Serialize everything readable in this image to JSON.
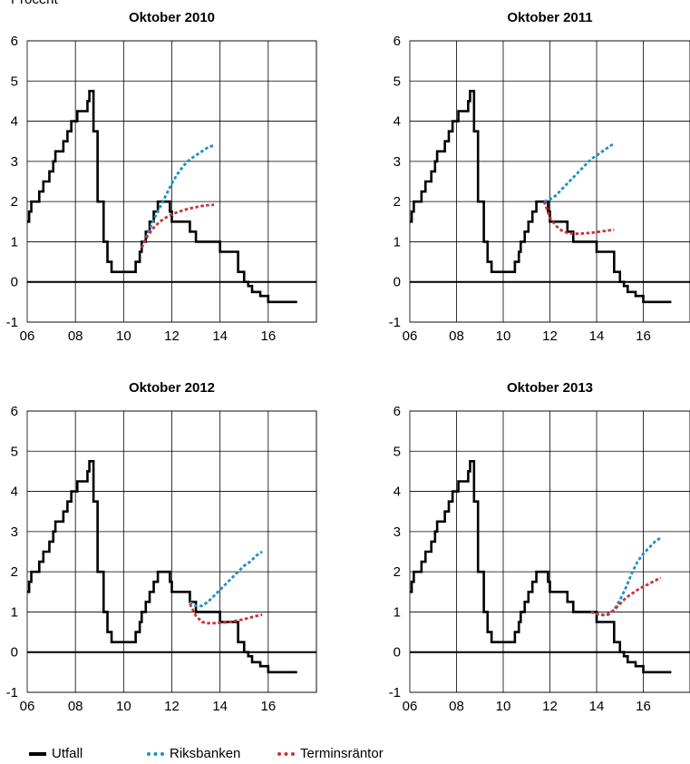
{
  "unit_label": "Procent",
  "colors": {
    "utfall": "#000000",
    "riksbanken": "#1f8fc2",
    "terminsrantor": "#c8323c"
  },
  "legend": [
    {
      "key": "utfall",
      "label": "Utfall",
      "style": "solid"
    },
    {
      "key": "riksbanken",
      "label": "Riksbanken",
      "style": "dotted"
    },
    {
      "key": "terminsrantor",
      "label": "Terminsräntor",
      "style": "dotted"
    }
  ],
  "chart_data": [
    {
      "type": "line",
      "title": "Oktober 2010",
      "xlim": [
        2006,
        2018
      ],
      "ylim": [
        -1,
        6
      ],
      "xticks": [
        {
          "v": 2006,
          "label": "06"
        },
        {
          "v": 2008,
          "label": "08"
        },
        {
          "v": 2010,
          "label": "10"
        },
        {
          "v": 2012,
          "label": "12"
        },
        {
          "v": 2014,
          "label": "14"
        },
        {
          "v": 2016,
          "label": "16"
        }
      ],
      "yticks": [
        -1,
        0,
        1,
        2,
        3,
        4,
        5,
        6
      ],
      "grid": true,
      "series": [
        {
          "key": "riksbanken",
          "x": [
            2010.75,
            2011.0,
            2011.25,
            2011.5,
            2011.75,
            2012.0,
            2012.25,
            2012.5,
            2012.75,
            2013.0,
            2013.25,
            2013.5,
            2013.75
          ],
          "y": [
            0.85,
            1.2,
            1.55,
            1.85,
            2.15,
            2.45,
            2.7,
            2.9,
            3.05,
            3.15,
            3.25,
            3.35,
            3.4
          ]
        },
        {
          "key": "terminsrantor",
          "x": [
            2010.75,
            2011.0,
            2011.25,
            2011.5,
            2011.75,
            2012.0,
            2012.25,
            2012.5,
            2012.75,
            2013.0,
            2013.25,
            2013.5,
            2013.75
          ],
          "y": [
            0.85,
            1.15,
            1.35,
            1.5,
            1.6,
            1.68,
            1.74,
            1.79,
            1.83,
            1.86,
            1.89,
            1.91,
            1.92
          ]
        }
      ]
    },
    {
      "type": "line",
      "title": "Oktober 2011",
      "xlim": [
        2006,
        2018
      ],
      "ylim": [
        -1,
        6
      ],
      "xticks": [
        {
          "v": 2006,
          "label": "06"
        },
        {
          "v": 2008,
          "label": "08"
        },
        {
          "v": 2010,
          "label": "10"
        },
        {
          "v": 2012,
          "label": "12"
        },
        {
          "v": 2014,
          "label": "14"
        },
        {
          "v": 2016,
          "label": "16"
        }
      ],
      "yticks": [
        -1,
        0,
        1,
        2,
        3,
        4,
        5,
        6
      ],
      "grid": true,
      "series": [
        {
          "key": "riksbanken",
          "x": [
            2011.75,
            2012.0,
            2012.25,
            2012.5,
            2012.75,
            2013.0,
            2013.25,
            2013.5,
            2013.75,
            2014.0,
            2014.25,
            2014.5,
            2014.75
          ],
          "y": [
            2.0,
            2.05,
            2.15,
            2.3,
            2.45,
            2.6,
            2.75,
            2.9,
            3.05,
            3.15,
            3.25,
            3.35,
            3.45
          ]
        },
        {
          "key": "terminsrantor",
          "x": [
            2011.75,
            2012.0,
            2012.25,
            2012.5,
            2012.75,
            2013.0,
            2013.25,
            2013.5,
            2013.75,
            2014.0,
            2014.25,
            2014.5,
            2014.75
          ],
          "y": [
            2.0,
            1.6,
            1.4,
            1.28,
            1.22,
            1.2,
            1.2,
            1.21,
            1.22,
            1.24,
            1.26,
            1.28,
            1.3
          ]
        }
      ]
    },
    {
      "type": "line",
      "title": "Oktober 2012",
      "xlim": [
        2006,
        2018
      ],
      "ylim": [
        -1,
        6
      ],
      "xticks": [
        {
          "v": 2006,
          "label": "06"
        },
        {
          "v": 2008,
          "label": "08"
        },
        {
          "v": 2010,
          "label": "10"
        },
        {
          "v": 2012,
          "label": "12"
        },
        {
          "v": 2014,
          "label": "14"
        },
        {
          "v": 2016,
          "label": "16"
        }
      ],
      "yticks": [
        -1,
        0,
        1,
        2,
        3,
        4,
        5,
        6
      ],
      "grid": true,
      "series": [
        {
          "key": "riksbanken",
          "x": [
            2012.75,
            2013.0,
            2013.25,
            2013.5,
            2013.75,
            2014.0,
            2014.25,
            2014.5,
            2014.75,
            2015.0,
            2015.25,
            2015.5,
            2015.75
          ],
          "y": [
            1.25,
            1.15,
            1.15,
            1.25,
            1.4,
            1.55,
            1.7,
            1.85,
            2.0,
            2.15,
            2.25,
            2.4,
            2.5
          ]
        },
        {
          "key": "terminsrantor",
          "x": [
            2012.75,
            2013.0,
            2013.25,
            2013.5,
            2013.75,
            2014.0,
            2014.25,
            2014.5,
            2014.75,
            2015.0,
            2015.25,
            2015.5,
            2015.75
          ],
          "y": [
            1.2,
            0.9,
            0.75,
            0.72,
            0.72,
            0.73,
            0.74,
            0.76,
            0.79,
            0.82,
            0.86,
            0.9,
            0.93
          ]
        }
      ]
    },
    {
      "type": "line",
      "title": "Oktober 2013",
      "xlim": [
        2006,
        2018
      ],
      "ylim": [
        -1,
        6
      ],
      "xticks": [
        {
          "v": 2006,
          "label": "06"
        },
        {
          "v": 2008,
          "label": "08"
        },
        {
          "v": 2010,
          "label": "10"
        },
        {
          "v": 2012,
          "label": "12"
        },
        {
          "v": 2014,
          "label": "14"
        },
        {
          "v": 2016,
          "label": "16"
        }
      ],
      "yticks": [
        -1,
        0,
        1,
        2,
        3,
        4,
        5,
        6
      ],
      "grid": true,
      "series": [
        {
          "key": "riksbanken",
          "x": [
            2013.75,
            2014.0,
            2014.25,
            2014.5,
            2014.75,
            2015.0,
            2015.25,
            2015.5,
            2015.75,
            2016.0,
            2016.25,
            2016.5,
            2016.75
          ],
          "y": [
            1.0,
            0.95,
            0.92,
            0.93,
            1.05,
            1.3,
            1.6,
            1.95,
            2.25,
            2.45,
            2.6,
            2.75,
            2.85
          ]
        },
        {
          "key": "terminsrantor",
          "x": [
            2013.75,
            2014.0,
            2014.25,
            2014.5,
            2014.75,
            2015.0,
            2015.25,
            2015.5,
            2015.75,
            2016.0,
            2016.25,
            2016.5,
            2016.75
          ],
          "y": [
            1.0,
            0.95,
            0.93,
            0.95,
            1.05,
            1.2,
            1.35,
            1.45,
            1.55,
            1.63,
            1.7,
            1.78,
            1.85
          ]
        }
      ]
    }
  ],
  "utfall": {
    "x": [
      2006.0,
      2006.08,
      2006.17,
      2006.25,
      2006.33,
      2006.5,
      2006.67,
      2006.75,
      2006.92,
      2007.08,
      2007.17,
      2007.42,
      2007.5,
      2007.67,
      2007.83,
      2008.08,
      2008.42,
      2008.5,
      2008.58,
      2008.67,
      2008.75,
      2008.83,
      2008.92,
      2009.0,
      2009.17,
      2009.33,
      2009.5,
      2010.5,
      2010.67,
      2010.75,
      2010.92,
      2011.08,
      2011.25,
      2011.42,
      2011.67,
      2011.75,
      2011.92,
      2012.0,
      2012.25,
      2012.75,
      2012.92,
      2013.0,
      2013.17,
      2013.58,
      2014.0,
      2014.75,
      2014.83,
      2015.0,
      2015.17,
      2015.33,
      2015.5,
      2015.67,
      2015.83,
      2016.0,
      2016.17,
      2017.2
    ],
    "y": [
      1.5,
      1.75,
      2.0,
      2.0,
      2.0,
      2.25,
      2.5,
      2.5,
      2.75,
      3.0,
      3.25,
      3.25,
      3.5,
      3.75,
      4.0,
      4.25,
      4.25,
      4.5,
      4.75,
      4.75,
      3.75,
      3.75,
      2.0,
      2.0,
      1.0,
      0.5,
      0.25,
      0.5,
      0.75,
      1.0,
      1.25,
      1.5,
      1.75,
      2.0,
      2.0,
      2.0,
      1.75,
      1.5,
      1.5,
      1.25,
      1.25,
      1.0,
      1.0,
      1.0,
      0.75,
      0.25,
      0.25,
      0.0,
      -0.1,
      -0.25,
      -0.25,
      -0.35,
      -0.35,
      -0.5,
      -0.5,
      -0.5
    ]
  }
}
